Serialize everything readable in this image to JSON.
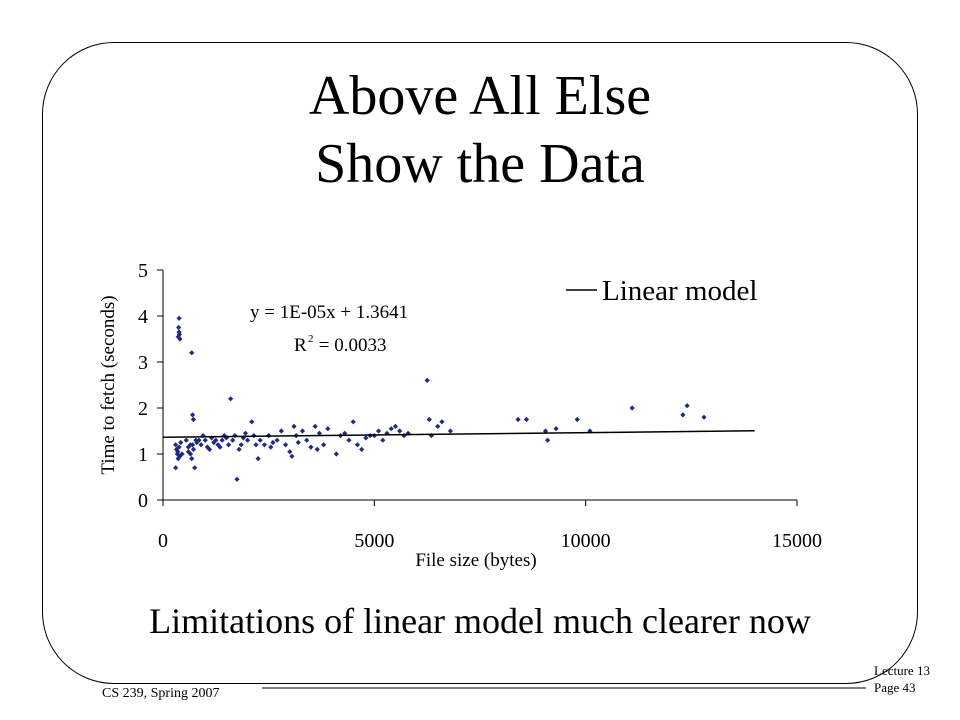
{
  "slide": {
    "title_line1": "Above All Else",
    "title_line2": "Show the Data",
    "caption": "Limitations of linear model much clearer now",
    "footer_course": "CS 239, Spring 2007",
    "footer_lecture": "Lecture 13",
    "footer_page": "Page 43"
  },
  "colors": {
    "points": "#1f2a80",
    "line": "#000000"
  },
  "chart_data": {
    "type": "scatter",
    "xlabel": "File size (bytes)",
    "ylabel": "Time to fetch (seconds)",
    "xlim": [
      0,
      15000
    ],
    "ylim": [
      0,
      5
    ],
    "xticks": [
      "0",
      "5000",
      "10000",
      "15000"
    ],
    "yticks": [
      "0",
      "1",
      "2",
      "3",
      "4",
      "5"
    ],
    "grid": false,
    "legend": {
      "label": "Linear model",
      "position": "top-right"
    },
    "annotation": {
      "equation": "y = 1E-05x + 1.3641",
      "r2_prefix": "R",
      "r2_exp": "2",
      "r2_value": " = 0.0033"
    },
    "trendline": {
      "x": [
        0,
        14000
      ],
      "slope": 1e-05,
      "intercept": 1.3641
    },
    "series": [
      {
        "points": [
          [
            300,
            1.2
          ],
          [
            320,
            1.1
          ],
          [
            340,
            1.0
          ],
          [
            360,
            0.9
          ],
          [
            300,
            0.7
          ],
          [
            380,
            1.15
          ],
          [
            400,
            0.95
          ],
          [
            350,
            1.05
          ],
          [
            420,
            1.25
          ],
          [
            450,
            1.0
          ],
          [
            380,
            3.95
          ],
          [
            370,
            3.75
          ],
          [
            390,
            3.6
          ],
          [
            400,
            3.5
          ],
          [
            380,
            3.65
          ],
          [
            360,
            3.55
          ],
          [
            550,
            1.3
          ],
          [
            600,
            1.15
          ],
          [
            650,
            1.0
          ],
          [
            680,
            0.9
          ],
          [
            700,
            1.2
          ],
          [
            720,
            1.1
          ],
          [
            750,
            0.7
          ],
          [
            780,
            1.3
          ],
          [
            800,
            1.25
          ],
          [
            600,
            1.05
          ],
          [
            650,
            1.2
          ],
          [
            680,
            3.2
          ],
          [
            700,
            1.85
          ],
          [
            720,
            1.75
          ],
          [
            850,
            1.3
          ],
          [
            900,
            1.2
          ],
          [
            950,
            1.4
          ],
          [
            1000,
            1.3
          ],
          [
            1050,
            1.15
          ],
          [
            1100,
            1.1
          ],
          [
            1150,
            1.35
          ],
          [
            1200,
            1.25
          ],
          [
            1250,
            1.3
          ],
          [
            1300,
            1.2
          ],
          [
            1350,
            1.15
          ],
          [
            1400,
            1.3
          ],
          [
            1450,
            1.4
          ],
          [
            1500,
            1.35
          ],
          [
            1550,
            1.2
          ],
          [
            1600,
            2.2
          ],
          [
            1650,
            1.3
          ],
          [
            1700,
            1.4
          ],
          [
            1750,
            0.45
          ],
          [
            1800,
            1.1
          ],
          [
            1850,
            1.2
          ],
          [
            1900,
            1.35
          ],
          [
            1950,
            1.45
          ],
          [
            2000,
            1.3
          ],
          [
            2100,
            1.7
          ],
          [
            2150,
            1.4
          ],
          [
            2200,
            1.2
          ],
          [
            2250,
            0.9
          ],
          [
            2300,
            1.3
          ],
          [
            2400,
            1.2
          ],
          [
            2500,
            1.4
          ],
          [
            2550,
            1.15
          ],
          [
            2600,
            1.25
          ],
          [
            2700,
            1.3
          ],
          [
            2800,
            1.5
          ],
          [
            2900,
            1.2
          ],
          [
            3000,
            1.05
          ],
          [
            3050,
            0.95
          ],
          [
            3100,
            1.6
          ],
          [
            3150,
            1.4
          ],
          [
            3200,
            1.25
          ],
          [
            3300,
            1.5
          ],
          [
            3400,
            1.3
          ],
          [
            3500,
            1.15
          ],
          [
            3600,
            1.6
          ],
          [
            3650,
            1.1
          ],
          [
            3700,
            1.45
          ],
          [
            3800,
            1.2
          ],
          [
            3900,
            1.55
          ],
          [
            4100,
            1.0
          ],
          [
            4200,
            1.4
          ],
          [
            4300,
            1.45
          ],
          [
            4400,
            1.3
          ],
          [
            4500,
            1.7
          ],
          [
            4600,
            1.2
          ],
          [
            4700,
            1.1
          ],
          [
            4800,
            1.35
          ],
          [
            4900,
            1.4
          ],
          [
            5000,
            1.4
          ],
          [
            5100,
            1.5
          ],
          [
            5200,
            1.3
          ],
          [
            5300,
            1.45
          ],
          [
            5400,
            1.55
          ],
          [
            5500,
            1.6
          ],
          [
            5600,
            1.5
          ],
          [
            5700,
            1.4
          ],
          [
            5800,
            1.45
          ],
          [
            6250,
            2.6
          ],
          [
            6300,
            1.75
          ],
          [
            6350,
            1.4
          ],
          [
            6500,
            1.6
          ],
          [
            6600,
            1.7
          ],
          [
            6800,
            1.5
          ],
          [
            8400,
            1.75
          ],
          [
            8600,
            1.75
          ],
          [
            9050,
            1.5
          ],
          [
            9100,
            1.3
          ],
          [
            9300,
            1.55
          ],
          [
            9800,
            1.75
          ],
          [
            10100,
            1.5
          ],
          [
            11100,
            2.0
          ],
          [
            12300,
            1.85
          ],
          [
            12400,
            2.05
          ],
          [
            12800,
            1.8
          ]
        ]
      }
    ]
  }
}
